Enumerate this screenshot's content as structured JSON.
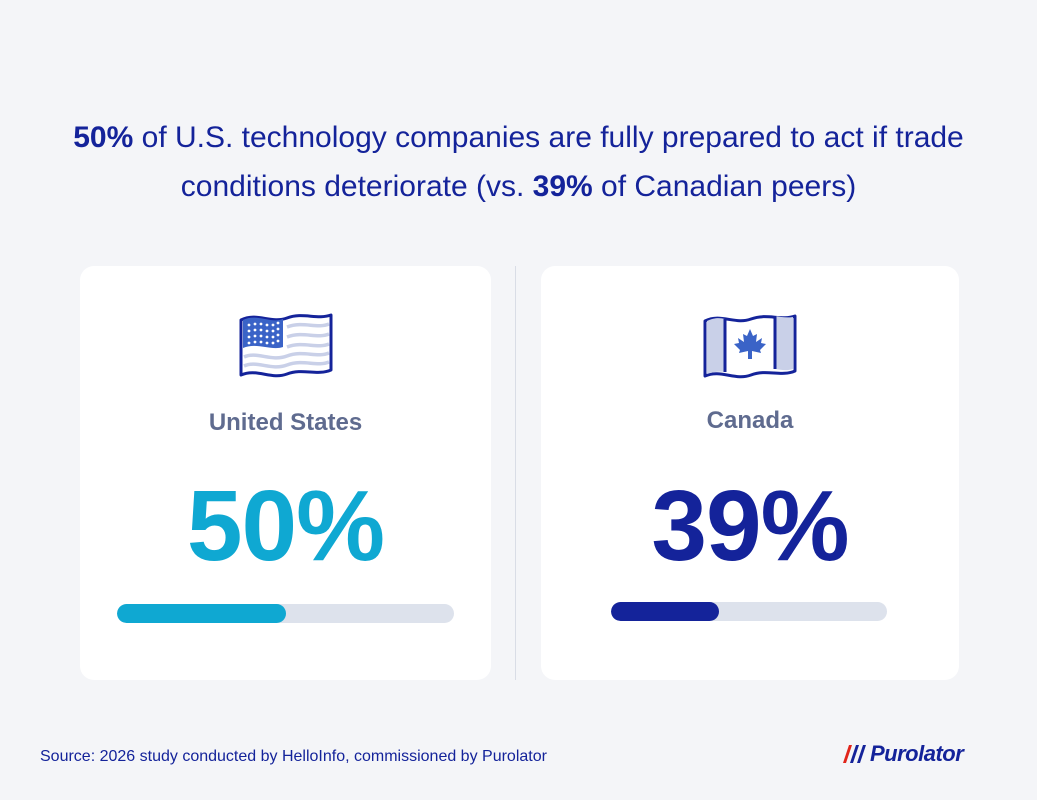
{
  "headline": {
    "part1_bold": "50%",
    "part2": " of U.S. technology companies are fully prepared to act if trade conditions deteriorate (vs. ",
    "part3_bold": "39%",
    "part4": " of Canadian peers)"
  },
  "chart_data": {
    "type": "bar",
    "categories": [
      "United States",
      "Canada"
    ],
    "values": [
      50,
      39
    ],
    "unit": "%",
    "ylim": [
      0,
      100
    ],
    "value_labels": [
      "50%",
      "39%"
    ],
    "colors": [
      "#0fa8d2",
      "#14239a"
    ],
    "track_color": "#dde2ec"
  },
  "cards": [
    {
      "country": "United States",
      "flag_icon": "us-flag-icon",
      "value_label": "50%",
      "fraction": 0.5,
      "color": "#0fa8d2"
    },
    {
      "country": "Canada",
      "flag_icon": "canada-flag-icon",
      "value_label": "39%",
      "fraction": 0.39,
      "color": "#14239a"
    }
  ],
  "footer": {
    "source": "Source: 2026 study conducted by HelloInfo, commissioned by Purolator",
    "logo_text": "Purolator"
  },
  "colors": {
    "background": "#f4f5f8",
    "navy": "#14239a",
    "cyan": "#0fa8d2",
    "label_gray": "#5f6b8f",
    "red": "#e1251b"
  }
}
